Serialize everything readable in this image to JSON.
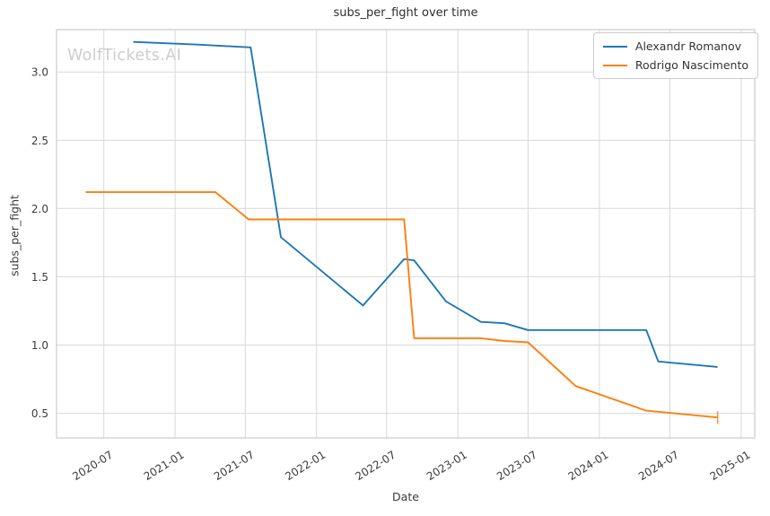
{
  "watermark": "WolfTickets.AI",
  "colors": {
    "series_blue": "#1f77b4",
    "series_orange": "#ff7f0e",
    "grid": "#d8d8d8",
    "spine": "#cccccc",
    "text": "#3b3b3b",
    "watermark": "#cdcdcd",
    "background": "#ffffff"
  },
  "chart_data": {
    "type": "line",
    "title": "subs_per_fight over time",
    "xlabel": "Date",
    "ylabel": "subs_per_fight",
    "grid": true,
    "legend_position": "upper right",
    "xlim": [
      "2020-03-01",
      "2025-02-05"
    ],
    "ylim": [
      0.32,
      3.31
    ],
    "x_ticks": [
      {
        "date": "2020-07-01",
        "label": "2020-07"
      },
      {
        "date": "2021-01-01",
        "label": "2021-01"
      },
      {
        "date": "2021-07-01",
        "label": "2021-07"
      },
      {
        "date": "2022-01-01",
        "label": "2022-01"
      },
      {
        "date": "2022-07-01",
        "label": "2022-07"
      },
      {
        "date": "2023-01-01",
        "label": "2023-01"
      },
      {
        "date": "2023-07-01",
        "label": "2023-07"
      },
      {
        "date": "2024-01-01",
        "label": "2024-01"
      },
      {
        "date": "2024-07-01",
        "label": "2024-07"
      },
      {
        "date": "2025-01-01",
        "label": "2025-01"
      }
    ],
    "y_ticks": [
      {
        "value": 0.5,
        "label": "0.5"
      },
      {
        "value": 1.0,
        "label": "1.0"
      },
      {
        "value": 1.5,
        "label": "1.5"
      },
      {
        "value": 2.0,
        "label": "2.0"
      },
      {
        "value": 2.5,
        "label": "2.5"
      },
      {
        "value": 3.0,
        "label": "3.0"
      }
    ],
    "series": [
      {
        "name": "Alexandr Romanov",
        "color": "#1f77b4",
        "points": [
          [
            "2020-09-15",
            3.22
          ],
          [
            "2021-03-01",
            3.2
          ],
          [
            "2021-07-15",
            3.18
          ],
          [
            "2021-10-01",
            1.79
          ],
          [
            "2022-05-01",
            1.29
          ],
          [
            "2022-08-15",
            1.63
          ],
          [
            "2022-09-10",
            1.62
          ],
          [
            "2022-12-01",
            1.32
          ],
          [
            "2023-03-01",
            1.17
          ],
          [
            "2023-05-01",
            1.16
          ],
          [
            "2023-07-01",
            1.11
          ],
          [
            "2024-05-01",
            1.11
          ],
          [
            "2024-06-01",
            0.88
          ],
          [
            "2024-11-01",
            0.84
          ]
        ]
      },
      {
        "name": "Rodrigo Nascimento",
        "color": "#ff7f0e",
        "end_marker": "vertical-tick",
        "points": [
          [
            "2020-05-15",
            2.12
          ],
          [
            "2021-04-15",
            2.12
          ],
          [
            "2021-07-10",
            1.92
          ],
          [
            "2022-08-15",
            1.92
          ],
          [
            "2022-09-10",
            1.05
          ],
          [
            "2023-03-01",
            1.05
          ],
          [
            "2023-05-01",
            1.03
          ],
          [
            "2023-07-01",
            1.02
          ],
          [
            "2023-11-01",
            0.7
          ],
          [
            "2024-05-01",
            0.52
          ],
          [
            "2024-11-01",
            0.47
          ]
        ]
      }
    ]
  }
}
